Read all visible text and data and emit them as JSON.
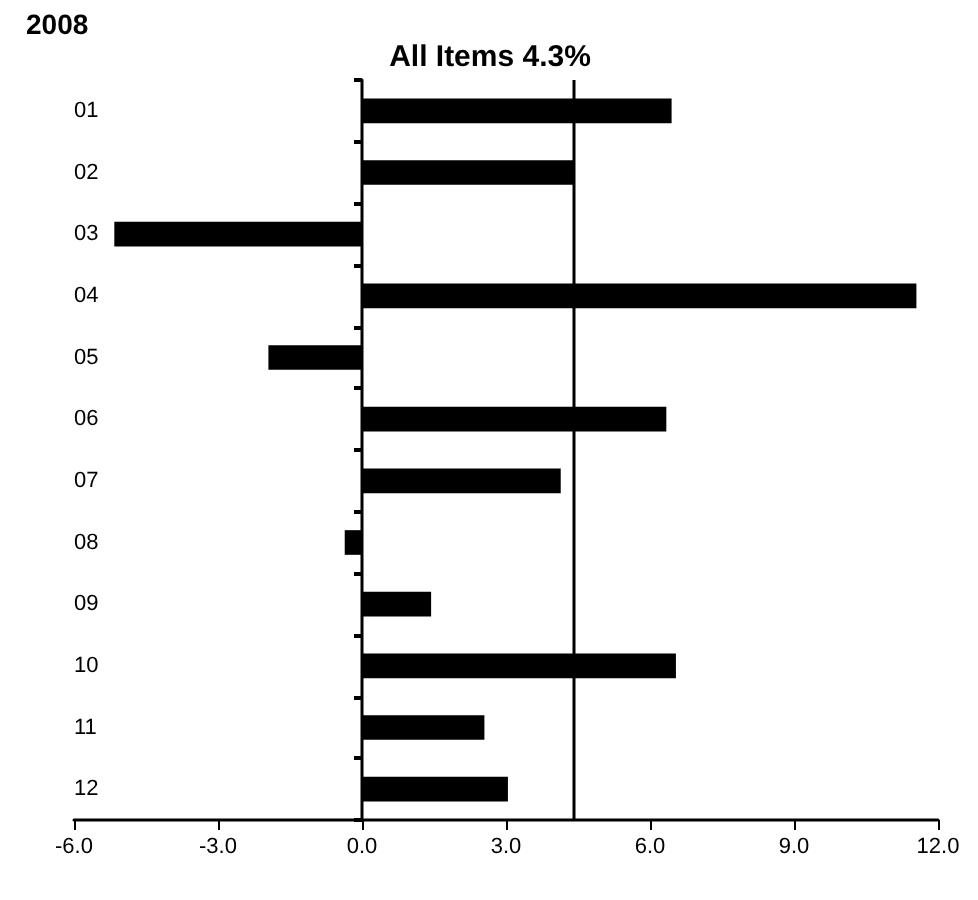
{
  "chart_data": {
    "type": "bar",
    "orientation": "horizontal",
    "title": "2008",
    "subtitle": "All Items 4.3%",
    "categories": [
      "01",
      "02",
      "03",
      "04",
      "05",
      "06",
      "07",
      "08",
      "09",
      "10",
      "11",
      "12"
    ],
    "values": [
      6.45,
      4.43,
      -5.16,
      11.55,
      -1.95,
      6.34,
      4.14,
      -0.36,
      1.44,
      6.54,
      2.55,
      3.04
    ],
    "color": "#000000",
    "xlim": [
      -6,
      12
    ],
    "xticks": [
      {
        "value": -6,
        "label": "-6.0"
      },
      {
        "value": -3,
        "label": "-3.0"
      },
      {
        "value": 0,
        "label": "0.0"
      },
      {
        "value": 3,
        "label": "3.0"
      },
      {
        "value": 6,
        "label": "6.0"
      },
      {
        "value": 9,
        "label": "9.0"
      },
      {
        "value": 12,
        "label": "12.0"
      }
    ],
    "ref_lines": [
      {
        "axis": "x",
        "value": 4.4,
        "color": "#000000"
      }
    ]
  }
}
